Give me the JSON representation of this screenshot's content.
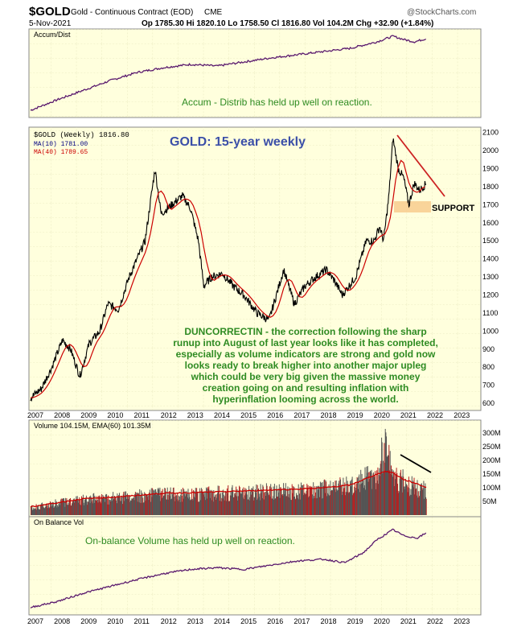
{
  "header": {
    "symbol": "$GOLD",
    "description": "Gold - Continuous Contract (EOD)",
    "exchange": "CME",
    "watermark": "@StockCharts.com",
    "date": "5-Nov-2021",
    "quote": "Op 1785.30  Hi 1820.10  Lo 1758.50  Cl 1816.80  Vol 104.2M  Chg +32.90 (+1.84%)"
  },
  "panels": {
    "accum": {
      "label": "Accum/Dist",
      "note": "Accum - Distrib has held up well on reaction."
    },
    "price": {
      "legend_main": "$GOLD (Weekly) 1816.80",
      "legend_ma10": "MA(10) 1781.00",
      "legend_ma40": "MA(40) 1789.65",
      "title": "GOLD: 15-year weekly",
      "support_label": "SUPPORT",
      "note_lines": [
        "DUNCORRECTIN - the correction following the sharp",
        "runup into August of last year looks like it has completed,",
        "especially as volume indicators are strong and gold now",
        "looks ready to break higher into another major upleg",
        "which could be very big given the massive money",
        "creation going on and resulting inflation with",
        "hyperinflation looming across the world."
      ]
    },
    "volume": {
      "legend": "Volume 104.15M, EMA(60) 101.35M"
    },
    "obv": {
      "label": "On Balance Vol",
      "note": "On-balance Volume has held up well on reaction."
    }
  },
  "x_axis_labels": [
    "2007",
    "2008",
    "2009",
    "2010",
    "2011",
    "2012",
    "2013",
    "2014",
    "2015",
    "2016",
    "2017",
    "2018",
    "2019",
    "2020",
    "2021",
    "2022",
    "2023"
  ],
  "colors": {
    "panel_bg": "#ffffdd",
    "price_line": "#000000",
    "ma10": "#000080",
    "ma40": "#cc0000",
    "accum_line": "#5a1a6e",
    "volume_bar": "#b22222",
    "note_text": "#2e8b22",
    "title_text": "#3b4fa8",
    "trendline": "#cc2222",
    "support_band": "#f7c98a"
  },
  "chart_data": [
    {
      "type": "line",
      "name": "Accum/Dist",
      "x": [
        2007.0,
        2008.0,
        2009.0,
        2010.0,
        2011.0,
        2012.0,
        2013.0,
        2014.0,
        2015.0,
        2016.0,
        2017.0,
        2018.0,
        2019.0,
        2020.0,
        2020.6,
        2021.0,
        2021.4,
        2021.85
      ],
      "values": [
        0.05,
        0.18,
        0.3,
        0.42,
        0.52,
        0.58,
        0.62,
        0.6,
        0.65,
        0.7,
        0.74,
        0.78,
        0.82,
        0.9,
        0.97,
        0.93,
        0.9,
        0.94
      ]
    },
    {
      "type": "line",
      "title": "GOLD: 15-year weekly",
      "ylim": [
        560,
        2130
      ],
      "yticks": [
        600,
        700,
        800,
        900,
        1000,
        1100,
        1200,
        1300,
        1400,
        1500,
        1600,
        1700,
        1800,
        1900,
        2000,
        2100
      ],
      "x": [
        2007.0,
        2007.4,
        2007.8,
        2008.2,
        2008.5,
        2008.85,
        2009.2,
        2009.6,
        2009.9,
        2010.3,
        2010.7,
        2011.0,
        2011.3,
        2011.67,
        2011.9,
        2012.3,
        2012.7,
        2013.0,
        2013.3,
        2013.5,
        2013.8,
        2014.2,
        2014.6,
        2015.0,
        2015.5,
        2015.95,
        2016.5,
        2016.9,
        2017.3,
        2017.7,
        2018.1,
        2018.4,
        2018.7,
        2019.2,
        2019.6,
        2019.9,
        2020.1,
        2020.25,
        2020.45,
        2020.6,
        2020.8,
        2021.0,
        2021.2,
        2021.4,
        2021.6,
        2021.85
      ],
      "values": [
        630,
        680,
        800,
        950,
        900,
        750,
        930,
        1000,
        1150,
        1120,
        1300,
        1400,
        1500,
        1900,
        1650,
        1700,
        1750,
        1680,
        1500,
        1250,
        1300,
        1320,
        1250,
        1200,
        1100,
        1060,
        1340,
        1150,
        1250,
        1300,
        1340,
        1280,
        1200,
        1300,
        1500,
        1500,
        1580,
        1500,
        1750,
        2070,
        1900,
        1850,
        1700,
        1820,
        1780,
        1817
      ]
    },
    {
      "type": "bar",
      "name": "Volume",
      "ylim": [
        0,
        330
      ],
      "yticks": [
        50,
        100,
        150,
        200,
        250,
        300
      ],
      "units": "M",
      "x": [
        2007.0,
        2008.0,
        2009.0,
        2010.0,
        2011.0,
        2012.0,
        2013.0,
        2014.0,
        2015.0,
        2016.0,
        2017.0,
        2018.0,
        2019.0,
        2019.5,
        2020.0,
        2020.3,
        2020.6,
        2021.0,
        2021.5,
        2021.85
      ],
      "values": [
        30,
        50,
        65,
        70,
        80,
        85,
        85,
        90,
        95,
        100,
        100,
        110,
        120,
        150,
        170,
        310,
        150,
        140,
        110,
        104
      ],
      "ema60": [
        30,
        45,
        60,
        65,
        72,
        80,
        82,
        85,
        88,
        92,
        95,
        100,
        110,
        130,
        150,
        160,
        155,
        130,
        115,
        101
      ]
    },
    {
      "type": "line",
      "name": "On Balance Vol",
      "x": [
        2007.0,
        2008.0,
        2009.0,
        2010.0,
        2011.0,
        2012.0,
        2013.0,
        2014.0,
        2015.0,
        2016.0,
        2017.0,
        2018.0,
        2018.8,
        2019.5,
        2020.0,
        2020.6,
        2021.0,
        2021.5,
        2021.85
      ],
      "values": [
        0.05,
        0.12,
        0.22,
        0.3,
        0.38,
        0.45,
        0.5,
        0.52,
        0.5,
        0.55,
        0.6,
        0.62,
        0.58,
        0.7,
        0.85,
        0.97,
        0.9,
        0.87,
        0.93
      ]
    }
  ]
}
